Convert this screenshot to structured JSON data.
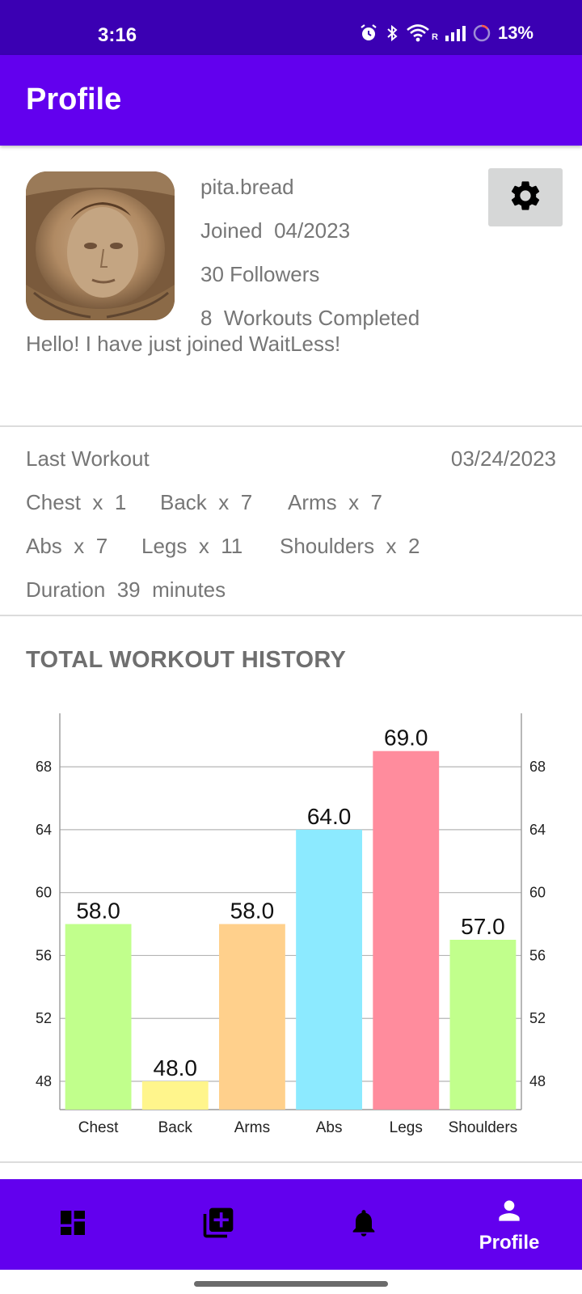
{
  "status_bar": {
    "time": "3:16",
    "network_label": "R",
    "battery": "13%"
  },
  "app_bar": {
    "title": "Profile"
  },
  "profile": {
    "username": "pita.bread",
    "joined": "Joined  04/2023",
    "followers": "30 Followers",
    "workouts": "8  Workouts Completed",
    "bio": "Hello! I have just joined WaitLess!",
    "settings_icon": "gear-icon"
  },
  "last_workout": {
    "label": "Last Workout",
    "date": "03/24/2023",
    "row1": [
      "Chest  x  1",
      "Back  x  7",
      "Arms  x  7"
    ],
    "row2": [
      "Abs  x  7",
      "Legs  x  11",
      "Shoulders  x  2"
    ],
    "duration": "Duration  39  minutes"
  },
  "history": {
    "title": "TOTAL WORKOUT HISTORY"
  },
  "chart_data": {
    "type": "bar",
    "categories": [
      "Chest",
      "Back",
      "Arms",
      "Abs",
      "Legs",
      "Shoulders"
    ],
    "values": [
      58.0,
      48.0,
      58.0,
      64.0,
      69.0,
      57.0
    ],
    "value_labels": [
      "58.0",
      "48.0",
      "58.0",
      "64.0",
      "69.0",
      "57.0"
    ],
    "colors": [
      "#c1ff8c",
      "#fff58c",
      "#ffd08c",
      "#8ceaff",
      "#ff8c9d",
      "#c1ff8c"
    ],
    "ylim": [
      46.2,
      71.4
    ],
    "yticks": [
      48,
      52,
      56,
      60,
      64,
      68
    ],
    "right_axis": true,
    "grid": true,
    "legend": false,
    "title": "",
    "xlabel": "",
    "ylabel": ""
  },
  "bottom_nav": {
    "items": [
      {
        "icon": "dashboard-icon",
        "label": ""
      },
      {
        "icon": "add-library-icon",
        "label": ""
      },
      {
        "icon": "bell-icon",
        "label": ""
      },
      {
        "icon": "person-icon",
        "label": "Profile"
      }
    ]
  },
  "colors": {
    "status_bar": "#3b00b3",
    "primary": "#6200ee",
    "text_gray": "#767676"
  }
}
